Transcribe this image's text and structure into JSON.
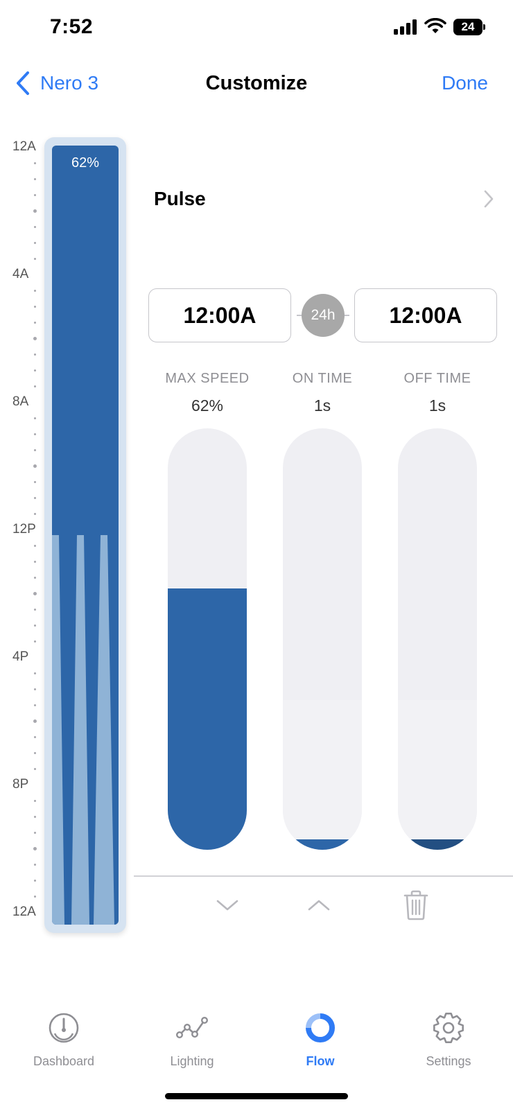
{
  "status_bar": {
    "time": "7:52",
    "battery": "24"
  },
  "nav": {
    "back_label": "Nero 3",
    "title": "Customize",
    "done_label": "Done"
  },
  "timeline": {
    "labels": [
      "12A",
      "4A",
      "8A",
      "12P",
      "4P",
      "8P",
      "12A"
    ],
    "current_percent": "62%",
    "pulse_start_fraction": 0.5
  },
  "mode": {
    "name": "Pulse"
  },
  "schedule": {
    "start_time": "12:00A",
    "end_time": "12:00A",
    "range_badge": "24h"
  },
  "controls": {
    "max_speed": {
      "label": "MAX SPEED",
      "value": "62%",
      "level": 0.62
    },
    "on_time": {
      "label": "ON TIME",
      "value": "1s",
      "level": 0.02
    },
    "off_time": {
      "label": "OFF TIME",
      "value": "1s",
      "level": 0.02
    }
  },
  "actions": [
    "chevron-down-icon",
    "chevron-up-icon",
    "trash-icon"
  ],
  "tabs": [
    {
      "label": "Dashboard",
      "icon": "dashboard-icon",
      "active": false
    },
    {
      "label": "Lighting",
      "icon": "lighting-icon",
      "active": false
    },
    {
      "label": "Flow",
      "icon": "flow-icon",
      "active": true
    },
    {
      "label": "Settings",
      "icon": "gear-icon",
      "active": false
    }
  ],
  "colors": {
    "accent": "#2f7bf5",
    "flow_blue": "#2d66a8",
    "flow_light": "#8fb3d6"
  }
}
